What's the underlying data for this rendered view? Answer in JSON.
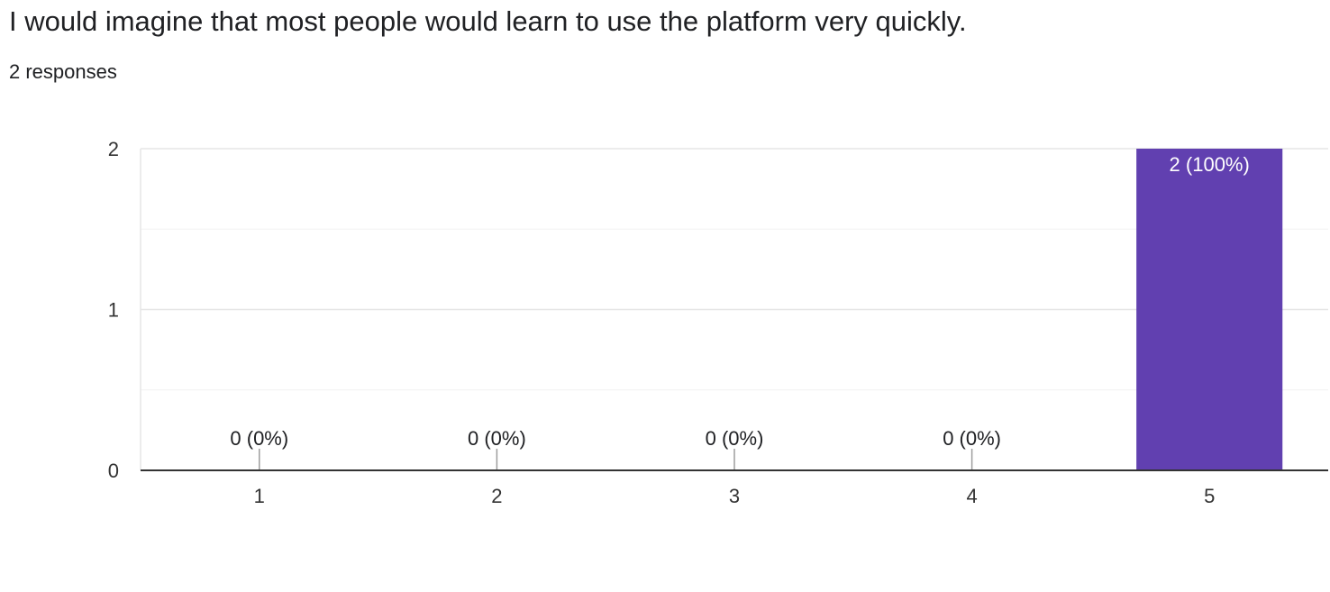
{
  "question": {
    "title": "I would imagine that most people would learn to use the platform very quickly.",
    "responses_label": "2 responses"
  },
  "colors": {
    "bar": "#6140b0",
    "bar_label_inside": "#ffffff",
    "text": "#202124",
    "axis_text": "#333333",
    "gridline": "#e8e8e8",
    "baseline": "#333333",
    "zero_tick": "#9e9e9e"
  },
  "chart_data": {
    "type": "bar",
    "title": "I would imagine that most people would learn to use the platform very quickly.",
    "categories": [
      "1",
      "2",
      "3",
      "4",
      "5"
    ],
    "values": [
      0,
      0,
      0,
      0,
      2
    ],
    "data_labels": [
      "0 (0%)",
      "0 (0%)",
      "0 (0%)",
      "0 (0%)",
      "2 (100%)"
    ],
    "xlabel": "",
    "ylabel": "",
    "ylim": [
      0,
      2
    ],
    "yticks": [
      0,
      1,
      2
    ],
    "ytick_labels": [
      "0",
      "1",
      "2"
    ],
    "grid": true,
    "legend": "none"
  }
}
